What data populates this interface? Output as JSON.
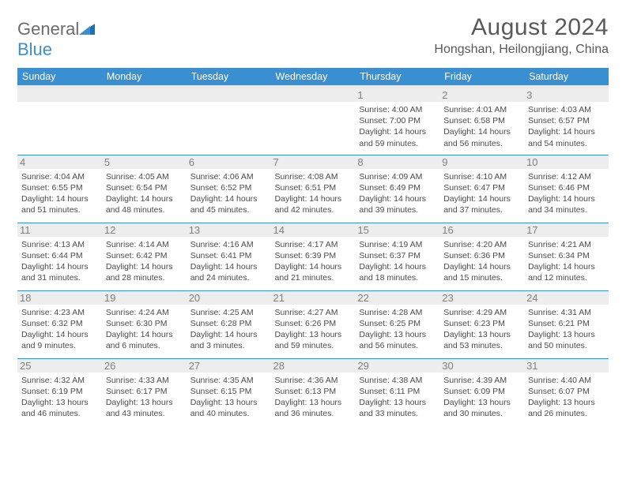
{
  "logo": {
    "text1": "General",
    "text2": "Blue"
  },
  "title": "August 2024",
  "location": "Hongshan, Heilongjiang, China",
  "colors": {
    "header_bg": "#3a8fd0",
    "header_text": "#ffffff",
    "grid_border": "#3a8fd0",
    "daynum_bg": "#ededed",
    "daynum_text": "#808080",
    "body_text": "#4a4a4a",
    "title_text": "#595959"
  },
  "day_headers": [
    "Sunday",
    "Monday",
    "Tuesday",
    "Wednesday",
    "Thursday",
    "Friday",
    "Saturday"
  ],
  "weeks": [
    [
      null,
      null,
      null,
      null,
      {
        "n": "1",
        "sr": "4:00 AM",
        "ss": "7:00 PM",
        "dl": "14 hours and 59 minutes."
      },
      {
        "n": "2",
        "sr": "4:01 AM",
        "ss": "6:58 PM",
        "dl": "14 hours and 56 minutes."
      },
      {
        "n": "3",
        "sr": "4:03 AM",
        "ss": "6:57 PM",
        "dl": "14 hours and 54 minutes."
      }
    ],
    [
      {
        "n": "4",
        "sr": "4:04 AM",
        "ss": "6:55 PM",
        "dl": "14 hours and 51 minutes."
      },
      {
        "n": "5",
        "sr": "4:05 AM",
        "ss": "6:54 PM",
        "dl": "14 hours and 48 minutes."
      },
      {
        "n": "6",
        "sr": "4:06 AM",
        "ss": "6:52 PM",
        "dl": "14 hours and 45 minutes."
      },
      {
        "n": "7",
        "sr": "4:08 AM",
        "ss": "6:51 PM",
        "dl": "14 hours and 42 minutes."
      },
      {
        "n": "8",
        "sr": "4:09 AM",
        "ss": "6:49 PM",
        "dl": "14 hours and 39 minutes."
      },
      {
        "n": "9",
        "sr": "4:10 AM",
        "ss": "6:47 PM",
        "dl": "14 hours and 37 minutes."
      },
      {
        "n": "10",
        "sr": "4:12 AM",
        "ss": "6:46 PM",
        "dl": "14 hours and 34 minutes."
      }
    ],
    [
      {
        "n": "11",
        "sr": "4:13 AM",
        "ss": "6:44 PM",
        "dl": "14 hours and 31 minutes."
      },
      {
        "n": "12",
        "sr": "4:14 AM",
        "ss": "6:42 PM",
        "dl": "14 hours and 28 minutes."
      },
      {
        "n": "13",
        "sr": "4:16 AM",
        "ss": "6:41 PM",
        "dl": "14 hours and 24 minutes."
      },
      {
        "n": "14",
        "sr": "4:17 AM",
        "ss": "6:39 PM",
        "dl": "14 hours and 21 minutes."
      },
      {
        "n": "15",
        "sr": "4:19 AM",
        "ss": "6:37 PM",
        "dl": "14 hours and 18 minutes."
      },
      {
        "n": "16",
        "sr": "4:20 AM",
        "ss": "6:36 PM",
        "dl": "14 hours and 15 minutes."
      },
      {
        "n": "17",
        "sr": "4:21 AM",
        "ss": "6:34 PM",
        "dl": "14 hours and 12 minutes."
      }
    ],
    [
      {
        "n": "18",
        "sr": "4:23 AM",
        "ss": "6:32 PM",
        "dl": "14 hours and 9 minutes."
      },
      {
        "n": "19",
        "sr": "4:24 AM",
        "ss": "6:30 PM",
        "dl": "14 hours and 6 minutes."
      },
      {
        "n": "20",
        "sr": "4:25 AM",
        "ss": "6:28 PM",
        "dl": "14 hours and 3 minutes."
      },
      {
        "n": "21",
        "sr": "4:27 AM",
        "ss": "6:26 PM",
        "dl": "13 hours and 59 minutes."
      },
      {
        "n": "22",
        "sr": "4:28 AM",
        "ss": "6:25 PM",
        "dl": "13 hours and 56 minutes."
      },
      {
        "n": "23",
        "sr": "4:29 AM",
        "ss": "6:23 PM",
        "dl": "13 hours and 53 minutes."
      },
      {
        "n": "24",
        "sr": "4:31 AM",
        "ss": "6:21 PM",
        "dl": "13 hours and 50 minutes."
      }
    ],
    [
      {
        "n": "25",
        "sr": "4:32 AM",
        "ss": "6:19 PM",
        "dl": "13 hours and 46 minutes."
      },
      {
        "n": "26",
        "sr": "4:33 AM",
        "ss": "6:17 PM",
        "dl": "13 hours and 43 minutes."
      },
      {
        "n": "27",
        "sr": "4:35 AM",
        "ss": "6:15 PM",
        "dl": "13 hours and 40 minutes."
      },
      {
        "n": "28",
        "sr": "4:36 AM",
        "ss": "6:13 PM",
        "dl": "13 hours and 36 minutes."
      },
      {
        "n": "29",
        "sr": "4:38 AM",
        "ss": "6:11 PM",
        "dl": "13 hours and 33 minutes."
      },
      {
        "n": "30",
        "sr": "4:39 AM",
        "ss": "6:09 PM",
        "dl": "13 hours and 30 minutes."
      },
      {
        "n": "31",
        "sr": "4:40 AM",
        "ss": "6:07 PM",
        "dl": "13 hours and 26 minutes."
      }
    ]
  ],
  "labels": {
    "sunrise": "Sunrise:",
    "sunset": "Sunset:",
    "daylight": "Daylight:"
  }
}
